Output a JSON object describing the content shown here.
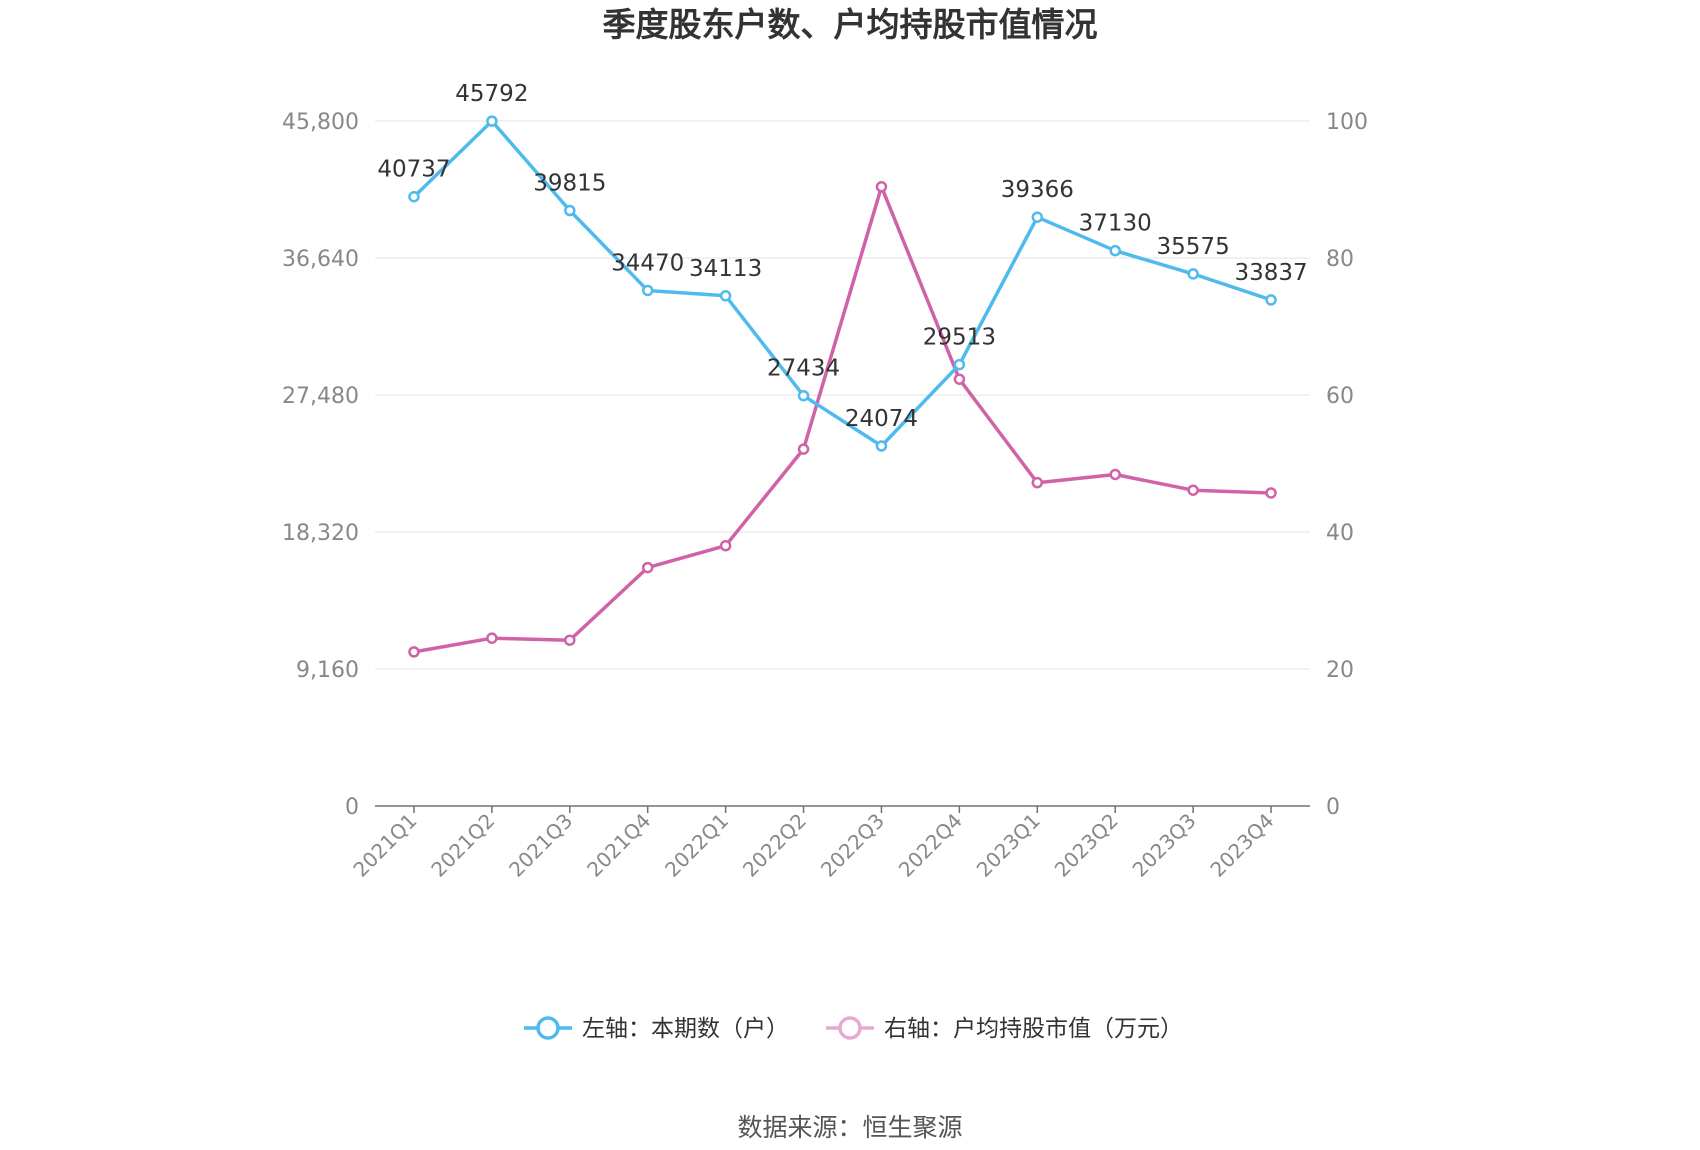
{
  "chart_data": {
    "type": "line",
    "title": "季度股东户数、户均持股市值情况",
    "categories": [
      "2021Q1",
      "2021Q2",
      "2021Q3",
      "2021Q4",
      "2022Q1",
      "2022Q2",
      "2022Q3",
      "2022Q4",
      "2023Q1",
      "2023Q2",
      "2023Q3",
      "2023Q4"
    ],
    "y_left": {
      "min": 0,
      "max": 45800,
      "ticks": [
        "0",
        "9,160",
        "18,320",
        "27,480",
        "36,640",
        "45,800"
      ]
    },
    "y_right": {
      "min": 0,
      "max": 100,
      "ticks": [
        "0",
        "20",
        "40",
        "60",
        "80",
        "100"
      ]
    },
    "grid": true,
    "legend_position": "bottom",
    "series": [
      {
        "name": "左轴：本期数（户）",
        "axis": "left",
        "color": "#4fbaee",
        "values": [
          40737,
          45792,
          39815,
          34470,
          34113,
          27434,
          24074,
          29513,
          39366,
          37130,
          35575,
          33837
        ],
        "labels": [
          "40737",
          "45792",
          "39815",
          "34470",
          "34113",
          "27434",
          "24074",
          "29513",
          "39366",
          "37130",
          "35575",
          "33837"
        ]
      },
      {
        "name": "右轴：户均持股市值（万元）",
        "axis": "right",
        "color": "#d062a8",
        "legend_color": "#e8a9d0",
        "values": [
          22.5,
          24.5,
          24.2,
          34.8,
          38.0,
          52.1,
          90.4,
          62.3,
          47.2,
          48.4,
          46.1,
          45.7
        ]
      }
    ]
  },
  "source_text": "数据来源：恒生聚源"
}
